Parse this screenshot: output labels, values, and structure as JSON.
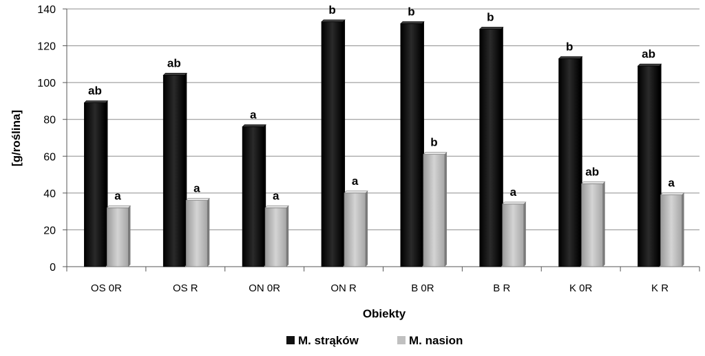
{
  "chart_data": {
    "type": "bar",
    "title": "",
    "xlabel": "Obiekty",
    "ylabel": "[g/roślina]",
    "ylim": [
      0,
      140
    ],
    "yticks": [
      0,
      20,
      40,
      60,
      80,
      100,
      120,
      140
    ],
    "grid": true,
    "legend_position": "bottom",
    "categories": [
      "OS 0R",
      "OS R",
      "ON 0R",
      "ON R",
      "B 0R",
      "B R",
      "K 0R",
      "K R"
    ],
    "series": [
      {
        "name": "M. strąków",
        "color": "#111111",
        "values": [
          89,
          104,
          76,
          133,
          132,
          129,
          113,
          109
        ],
        "labels": [
          "ab",
          "ab",
          "a",
          "b",
          "b",
          "b",
          "b",
          "ab"
        ]
      },
      {
        "name": "M. nasion",
        "color": "#c0c0c0",
        "values": [
          32,
          36,
          32,
          40,
          61,
          34,
          45,
          39
        ],
        "labels": [
          "a",
          "a",
          "a",
          "a",
          "b",
          "a",
          "ab",
          "a"
        ]
      }
    ]
  }
}
